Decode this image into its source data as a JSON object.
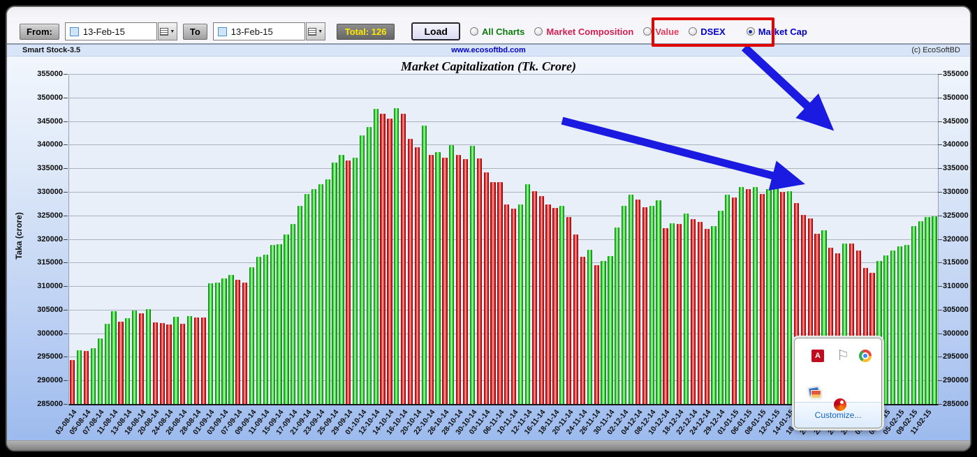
{
  "header": {
    "app_name": "Smart Stock-3.5",
    "website": "www.ecosoftbd.com",
    "copyright": "(c) EcoSoftBD"
  },
  "toolbar": {
    "from_label": "From:",
    "from_date": "13-Feb-15",
    "to_label": "To",
    "to_date": "13-Feb-15",
    "total_label": "Total: 126",
    "load_label": "Load",
    "radios": [
      {
        "label": "All Charts",
        "color": "#0c7a0c",
        "selected": false
      },
      {
        "label": "Market Composition",
        "color": "#d41e50",
        "selected": false
      },
      {
        "label": "Value",
        "color": "#e23a5a",
        "selected": false
      },
      {
        "label": "DSEX",
        "color": "#0000cc",
        "selected": false
      },
      {
        "label": "Market Cap",
        "color": "#0000c8",
        "selected": true
      }
    ]
  },
  "annotations": {
    "arrow_color": "#1a1ae0",
    "highlight_box_color": "#e20404",
    "highlighted_option": "Market Cap"
  },
  "chart_data": {
    "type": "bar",
    "title": "Market Capitalization (Tk. Crore)",
    "ylabel": "Taka (crore)",
    "xlabel": "",
    "ylim": [
      285000,
      355000
    ],
    "ytick_step": 5000,
    "grid": true,
    "legend": "none",
    "up_color": "#2dc42d",
    "down_color": "#e01b1b",
    "y_ticks": [
      355000,
      350000,
      345000,
      340000,
      335000,
      330000,
      325000,
      320000,
      315000,
      310000,
      305000,
      300000,
      295000,
      290000,
      285000
    ],
    "x_labels": [
      "03-08-14",
      "05-08-14",
      "07-08-14",
      "11-08-14",
      "13-08-14",
      "18-08-14",
      "20-08-14",
      "24-08-14",
      "26-08-14",
      "28-08-14",
      "01-09-14",
      "03-09-14",
      "07-09-14",
      "09-09-14",
      "11-09-14",
      "15-09-14",
      "17-09-14",
      "21-09-14",
      "23-09-14",
      "25-09-14",
      "29-09-14",
      "01-10-14",
      "12-10-14",
      "14-10-14",
      "16-10-14",
      "20-10-14",
      "22-10-14",
      "26-10-14",
      "28-10-14",
      "30-10-14",
      "03-11-14",
      "06-11-14",
      "10-11-14",
      "12-11-14",
      "16-11-14",
      "18-11-14",
      "20-11-14",
      "24-11-14",
      "26-11-14",
      "30-11-14",
      "02-12-14",
      "04-12-14",
      "08-12-14",
      "10-12-14",
      "18-12-14",
      "22-12-14",
      "24-12-14",
      "29-12-14",
      "01-01-15",
      "06-01-15",
      "08-01-15",
      "12-01-15",
      "14-01-15",
      "18-01-15",
      "20-01-15",
      "22-01-15",
      "26-01-15",
      "28-01-15",
      "01-02-15",
      "03-02-15",
      "05-02-15",
      "09-02-15",
      "11-02-15"
    ],
    "values": [
      294300,
      296400,
      296200,
      296900,
      298900,
      302000,
      304700,
      302400,
      303200,
      304800,
      304200,
      305200,
      302300,
      302100,
      301800,
      303500,
      302000,
      303600,
      303400,
      303300,
      310600,
      310700,
      311700,
      312400,
      311300,
      310700,
      314000,
      316200,
      316700,
      318700,
      318900,
      320900,
      323200,
      327100,
      329600,
      330600,
      331600,
      332700,
      336200,
      337800,
      336700,
      337300,
      342000,
      343700,
      347600,
      346500,
      345600,
      347700,
      346600,
      341300,
      339500,
      344000,
      337800,
      338400,
      337300,
      339900,
      337900,
      337000,
      339700,
      337100,
      334100,
      332100,
      332000,
      327300,
      326500,
      327400,
      331600,
      330100,
      329100,
      327300,
      326600,
      327000,
      324700,
      320900,
      316300,
      317700,
      314500,
      315400,
      316400,
      322400,
      327100,
      329400,
      328300,
      326800,
      327100,
      328200,
      322300,
      323300,
      323200,
      325400,
      324200,
      323700,
      322200,
      322800,
      326000,
      329400,
      328800,
      331000,
      330600,
      331000,
      329500,
      330600,
      331200,
      330000,
      330100,
      327600,
      325100,
      324300,
      321100,
      321900,
      318100,
      316900,
      319100,
      319000,
      317600,
      313900,
      312800,
      315300,
      316500,
      317600,
      318400,
      318700,
      322800,
      323800,
      324700,
      324800
    ],
    "directions": [
      "d",
      "u",
      "d",
      "u",
      "u",
      "u",
      "u",
      "d",
      "u",
      "u",
      "d",
      "u",
      "d",
      "d",
      "d",
      "u",
      "d",
      "u",
      "d",
      "d",
      "u",
      "u",
      "u",
      "u",
      "d",
      "d",
      "u",
      "u",
      "u",
      "u",
      "u",
      "u",
      "u",
      "u",
      "u",
      "u",
      "u",
      "u",
      "u",
      "u",
      "d",
      "u",
      "u",
      "u",
      "u",
      "d",
      "d",
      "u",
      "d",
      "d",
      "d",
      "u",
      "d",
      "u",
      "d",
      "u",
      "d",
      "d",
      "u",
      "d",
      "d",
      "d",
      "d",
      "d",
      "d",
      "u",
      "u",
      "d",
      "d",
      "d",
      "d",
      "u",
      "d",
      "d",
      "d",
      "u",
      "d",
      "u",
      "u",
      "u",
      "u",
      "u",
      "d",
      "d",
      "u",
      "u",
      "d",
      "u",
      "d",
      "u",
      "d",
      "d",
      "d",
      "u",
      "u",
      "u",
      "d",
      "u",
      "d",
      "u",
      "d",
      "u",
      "u",
      "d",
      "u",
      "d",
      "d",
      "d",
      "d",
      "u",
      "d",
      "d",
      "u",
      "d",
      "d",
      "d",
      "d",
      "u",
      "u",
      "u",
      "u",
      "u",
      "u",
      "u",
      "u",
      "u"
    ]
  },
  "tray_popup": {
    "customize_label": "Customize...",
    "icons": [
      "adobe",
      "flag",
      "chrome",
      "photos",
      "swirl"
    ]
  }
}
